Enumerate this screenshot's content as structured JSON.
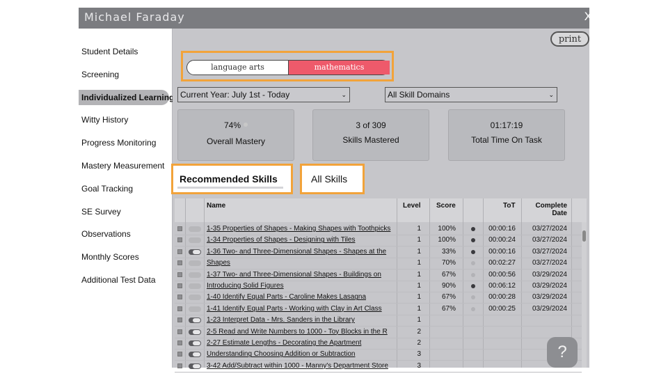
{
  "window": {
    "title": "Michael Faraday",
    "close": "X"
  },
  "sidebar": {
    "items": [
      {
        "label": "Student Details"
      },
      {
        "label": "Screening"
      },
      {
        "label": "Individualized Learning",
        "active": true
      },
      {
        "label": "Witty History"
      },
      {
        "label": "Progress Monitoring"
      },
      {
        "label": "Mastery Measurement"
      },
      {
        "label": "Goal Tracking"
      },
      {
        "label": "SE Survey"
      },
      {
        "label": "Observations"
      },
      {
        "label": "Monthly Scores"
      },
      {
        "label": "Additional Test Data"
      }
    ]
  },
  "toolbar": {
    "print_label": "print"
  },
  "subject_toggle": {
    "language_arts": "language arts",
    "mathematics": "mathematics",
    "selected": "mathematics",
    "accent": "#ee5a6b"
  },
  "filters": {
    "year": "Current Year: July 1st - Today",
    "domain": "All Skill Domains"
  },
  "stats": {
    "mastery": {
      "value": "74%",
      "label": "Overall Mastery"
    },
    "skills": {
      "value": "3 of 309",
      "label": "Skills Mastered"
    },
    "time": {
      "value": "01:17:19",
      "label": "Total Time On Task"
    }
  },
  "tabs": {
    "recommended": "Recommended Skills",
    "all": "All Skills"
  },
  "table": {
    "columns": {
      "name": "Name",
      "level": "Level",
      "score": "Score",
      "tot": "ToT",
      "complete_1": "Complete",
      "complete_2": "Date"
    },
    "rows": [
      {
        "name": "1-35 Properties of Shapes - Making Shapes with Toothpicks",
        "level": "1",
        "score": "100%",
        "dot": "dark",
        "tot": "00:00:16",
        "date": "03/27/2024",
        "toggle": "off"
      },
      {
        "name": "1-34 Properties of Shapes - Designing with Tiles",
        "level": "1",
        "score": "100%",
        "dot": "dark",
        "tot": "00:00:24",
        "date": "03/27/2024",
        "toggle": "off"
      },
      {
        "name": "1-36 Two- and Three-Dimensional Shapes - Shapes at the",
        "level": "1",
        "score": "33%",
        "dot": "dark",
        "tot": "00:00:16",
        "date": "03/27/2024",
        "toggle": "on"
      },
      {
        "name": "Shapes",
        "level": "1",
        "score": "70%",
        "dot": "light",
        "tot": "00:02:27",
        "date": "03/27/2024",
        "toggle": "off"
      },
      {
        "name": "1-37 Two- and Three-Dimensional Shapes - Buildings on",
        "level": "1",
        "score": "67%",
        "dot": "light",
        "tot": "00:00:56",
        "date": "03/29/2024",
        "toggle": "off"
      },
      {
        "name": "Introducing Solid Figures",
        "level": "1",
        "score": "90%",
        "dot": "dark",
        "tot": "00:06:12",
        "date": "03/29/2024",
        "toggle": "off"
      },
      {
        "name": "1-40 Identify Equal Parts - Caroline Makes Lasagna",
        "level": "1",
        "score": "67%",
        "dot": "light",
        "tot": "00:00:28",
        "date": "03/29/2024",
        "toggle": "off"
      },
      {
        "name": "1-41 Identify Equal Parts - Working with Clay in Art Class",
        "level": "1",
        "score": "67%",
        "dot": "light",
        "tot": "00:00:25",
        "date": "03/29/2024",
        "toggle": "off"
      },
      {
        "name": "1-23 Interpret Data - Mrs. Sanders in the Library",
        "level": "1",
        "score": "",
        "dot": "",
        "tot": "",
        "date": "",
        "toggle": "on"
      },
      {
        "name": "2-5 Read and Write Numbers to 1000 - Toy Blocks in the R",
        "level": "2",
        "score": "",
        "dot": "",
        "tot": "",
        "date": "",
        "toggle": "on"
      },
      {
        "name": "2-27 Estimate Lengths - Decorating the Apartment",
        "level": "2",
        "score": "",
        "dot": "",
        "tot": "",
        "date": "",
        "toggle": "on"
      },
      {
        "name": "Understanding Choosing Addition or Subtraction",
        "level": "3",
        "score": "",
        "dot": "",
        "tot": "",
        "date": "",
        "toggle": "on"
      },
      {
        "name": "3-42 Add/Subtract within 1000 - Manny's Department Store",
        "level": "3",
        "score": "",
        "dot": "",
        "tot": "",
        "date": "",
        "toggle": "on"
      }
    ]
  },
  "help": {
    "label": "?"
  }
}
